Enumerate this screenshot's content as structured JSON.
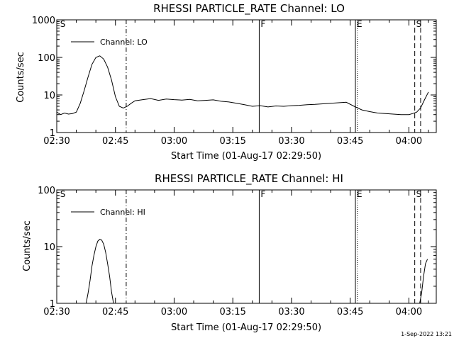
{
  "footer_text": "1-Sep-2022 13:21",
  "chart_data": [
    {
      "type": "line",
      "title": "RHESSI PARTICLE_RATE Channel: LO",
      "xlabel": "Start Time (01-Aug-17 02:29:50)",
      "ylabel": "Counts/sec",
      "yscale": "log",
      "ylim": [
        1,
        1000
      ],
      "xlim_minutes_after_0230": [
        0,
        97
      ],
      "x_tick_labels": [
        "02:30",
        "02:45",
        "03:00",
        "03:15",
        "03:30",
        "03:45",
        "04:00"
      ],
      "x_tick_minutes": [
        0,
        15,
        30,
        45,
        60,
        75,
        90
      ],
      "y_tick_labels": [
        "1",
        "10",
        "100",
        "1000"
      ],
      "y_tick_values": [
        1,
        10,
        100,
        1000
      ],
      "legend": {
        "position": "top-left",
        "entries": [
          "Channel: LO"
        ]
      },
      "series": [
        {
          "name": "Channel: LO",
          "x": [
            "02:30",
            "02:31",
            "02:32",
            "02:33",
            "02:34",
            "02:35",
            "02:36",
            "02:37",
            "02:38",
            "02:39",
            "02:40",
            "02:41",
            "02:42",
            "02:43",
            "02:44",
            "02:45",
            "02:46",
            "02:47",
            "02:48",
            "02:49",
            "02:50",
            "02:52",
            "02:54",
            "02:56",
            "02:58",
            "03:00",
            "03:02",
            "03:04",
            "03:06",
            "03:08",
            "03:10",
            "03:12",
            "03:14",
            "03:16",
            "03:18",
            "03:20",
            "03:22",
            "03:24",
            "03:26",
            "03:28",
            "03:30",
            "03:32",
            "03:34",
            "03:36",
            "03:38",
            "03:40",
            "03:42",
            "03:44",
            "03:46",
            "03:48",
            "03:50",
            "03:52",
            "03:54",
            "03:56",
            "03:58",
            "04:00",
            "04:01",
            "04:02",
            "04:03",
            "04:04",
            "04:05"
          ],
          "y": [
            3.5,
            3,
            3.3,
            3.1,
            3.2,
            3.5,
            6,
            13,
            30,
            65,
            100,
            110,
            90,
            55,
            25,
            9,
            5,
            4.5,
            5,
            6,
            7,
            7.5,
            8,
            7.2,
            7.8,
            7.5,
            7.3,
            7.6,
            7,
            7.2,
            7.4,
            6.8,
            6.5,
            6,
            5.5,
            5,
            5.2,
            4.8,
            5.1,
            5,
            5.2,
            5.3,
            5.5,
            5.6,
            5.8,
            6,
            6.2,
            6.4,
            5,
            4,
            3.6,
            3.3,
            3.2,
            3.1,
            3,
            3,
            3.2,
            3.5,
            4.5,
            7.5,
            12
          ]
        }
      ],
      "event_markers": [
        {
          "label": "S",
          "time": "02:30:30",
          "style": "label-only"
        },
        {
          "label": "",
          "time": "02:47:45",
          "style": "dash-dot"
        },
        {
          "label": "F",
          "time": "03:21:45",
          "style": "solid"
        },
        {
          "label": "E",
          "time": "03:46:20",
          "style": "solid"
        },
        {
          "label": "",
          "time": "03:46:50",
          "style": "dotted"
        },
        {
          "label": "S",
          "time": "04:01:30",
          "style": "dashed"
        },
        {
          "label": "",
          "time": "04:03:00",
          "style": "dashed"
        }
      ]
    },
    {
      "type": "line",
      "title": "RHESSI PARTICLE_RATE Channel: HI",
      "xlabel": "Start Time (01-Aug-17 02:29:50)",
      "ylabel": "Counts/sec",
      "yscale": "log",
      "ylim": [
        1,
        100
      ],
      "xlim_minutes_after_0230": [
        0,
        97
      ],
      "x_tick_labels": [
        "02:30",
        "02:45",
        "03:00",
        "03:15",
        "03:30",
        "03:45",
        "04:00"
      ],
      "x_tick_minutes": [
        0,
        15,
        30,
        45,
        60,
        75,
        90
      ],
      "y_tick_labels": [
        "1",
        "10",
        "100"
      ],
      "y_tick_values": [
        1,
        10,
        100
      ],
      "legend": {
        "position": "top-left",
        "entries": [
          "Channel: HI"
        ]
      },
      "series": [
        {
          "name": "Channel: HI",
          "x": [
            "02:37:30",
            "02:38:00",
            "02:38:30",
            "02:39:00",
            "02:39:30",
            "02:40:00",
            "02:40:30",
            "02:41:00",
            "02:41:30",
            "02:42:00",
            "02:42:30",
            "02:43:00",
            "02:43:30",
            "02:44:00",
            "02:44:30"
          ],
          "y": [
            1,
            1.5,
            2.5,
            4.5,
            7,
            10,
            12.5,
            13.5,
            13,
            11,
            8,
            5,
            3,
            1.6,
            1
          ]
        },
        {
          "name": "Channel: HI",
          "x": [
            "04:02:45",
            "04:03:15",
            "04:03:45",
            "04:04:15",
            "04:04:45"
          ],
          "y": [
            1,
            1.5,
            3,
            5,
            6
          ]
        }
      ],
      "event_markers": [
        {
          "label": "S",
          "time": "02:30:30",
          "style": "label-only"
        },
        {
          "label": "",
          "time": "02:47:45",
          "style": "dash-dot"
        },
        {
          "label": "F",
          "time": "03:21:45",
          "style": "solid"
        },
        {
          "label": "E",
          "time": "03:46:20",
          "style": "solid"
        },
        {
          "label": "",
          "time": "03:46:50",
          "style": "dotted"
        },
        {
          "label": "S",
          "time": "04:01:30",
          "style": "dashed"
        },
        {
          "label": "",
          "time": "04:03:00",
          "style": "dashed"
        }
      ]
    }
  ]
}
